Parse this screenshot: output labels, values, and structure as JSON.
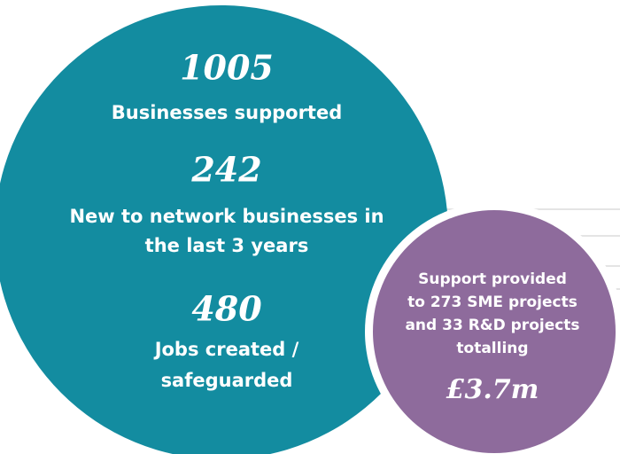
{
  "stats": [
    {
      "number": "1005",
      "lines": [
        "Businesses supported"
      ]
    },
    {
      "number": "242",
      "lines": [
        "New to network businesses in",
        "the last 3 years"
      ]
    },
    {
      "number": "480",
      "lines": [
        "Jobs created /",
        "safeguarded"
      ]
    }
  ],
  "highlight": {
    "lines": [
      "Support provided",
      "to 273 SME projects",
      "and 33 R&D projects",
      "totalling"
    ],
    "amount": "£3.7m"
  }
}
